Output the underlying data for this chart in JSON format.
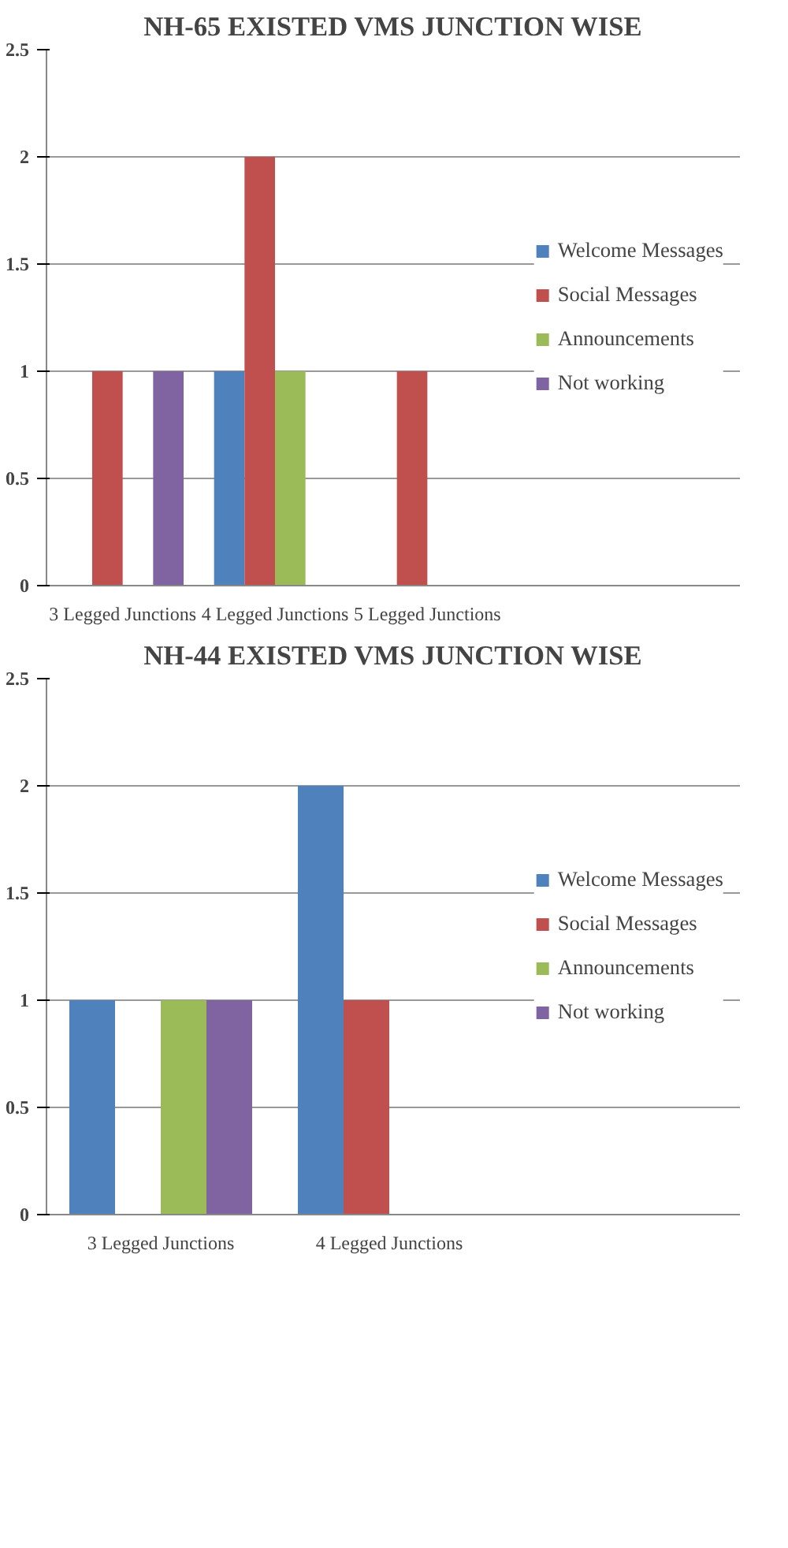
{
  "chart_data": [
    {
      "type": "bar",
      "title": "NH-65 EXISTED VMS JUNCTION WISE",
      "categories": [
        "3 Legged Junctions",
        "4 Legged Junctions",
        "5 Legged Junctions"
      ],
      "series": [
        {
          "name": "Welcome Messages",
          "color": "#4f81bd",
          "values": [
            0,
            1,
            0
          ]
        },
        {
          "name": "Social Messages",
          "color": "#c0504d",
          "values": [
            1,
            2,
            1
          ]
        },
        {
          "name": "Announcements",
          "color": "#9bbb59",
          "values": [
            0,
            1,
            0
          ]
        },
        {
          "name": "Not working",
          "color": "#8064a2",
          "values": [
            1,
            0,
            0
          ]
        }
      ],
      "ylim": [
        0,
        2.5
      ],
      "yticks": [
        0,
        0.5,
        1,
        1.5,
        2,
        2.5
      ],
      "grid": "y",
      "legend": "right"
    },
    {
      "type": "bar",
      "title": "NH-44 EXISTED VMS JUNCTION WISE",
      "categories": [
        "3 Legged Junctions",
        "4 Legged Junctions"
      ],
      "series": [
        {
          "name": "Welcome Messages",
          "color": "#4f81bd",
          "values": [
            1,
            2
          ]
        },
        {
          "name": "Social Messages",
          "color": "#c0504d",
          "values": [
            0,
            1
          ]
        },
        {
          "name": "Announcements",
          "color": "#9bbb59",
          "values": [
            1,
            0
          ]
        },
        {
          "name": "Not working",
          "color": "#8064a2",
          "values": [
            1,
            0
          ]
        }
      ],
      "ylim": [
        0,
        2.5
      ],
      "yticks": [
        0,
        0.5,
        1,
        1.5,
        2,
        2.5
      ],
      "grid": "y",
      "legend": "right"
    }
  ]
}
